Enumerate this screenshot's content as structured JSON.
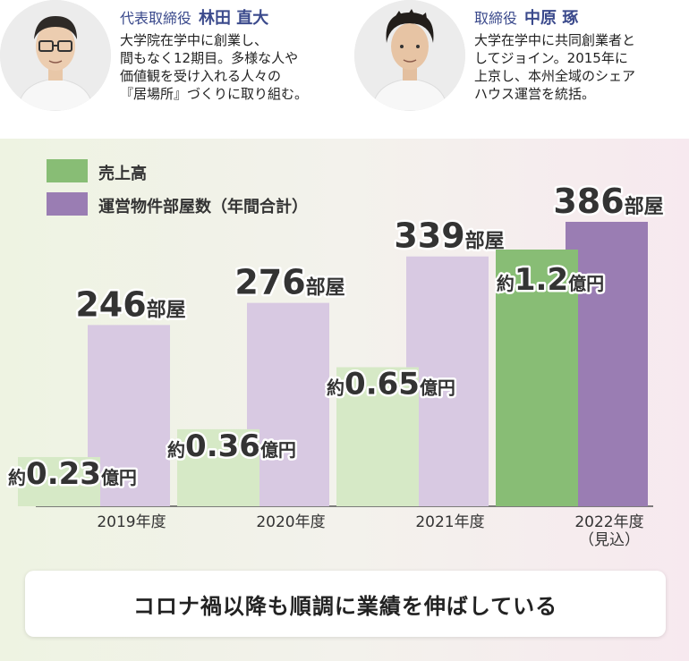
{
  "profiles": [
    {
      "role": "代表取締役",
      "name": "林田 直大",
      "bio": [
        "大学院在学中に創業し、",
        "間もなく12期目。多様な人や",
        "価値観を受け入れる人々の",
        "『居場所』づくりに取り組む。"
      ]
    },
    {
      "role": "取締役",
      "name": "中原 琢",
      "bio": [
        "大学在学中に共同創業者と",
        "してジョイン。2015年に",
        "上京し、本州全域のシェア",
        "ハウス運営を統括。"
      ]
    }
  ],
  "colors": {
    "sales": "#88bd75",
    "rooms": "#d8c9e2",
    "rooms_highlight": "#9a7db3",
    "sales_light": "#d6e9c6",
    "role_text": "#3b4a8c"
  },
  "chart_data": {
    "type": "bar",
    "categories": [
      "2019年度",
      "2020年度",
      "2021年度",
      "2022年度\n（見込）"
    ],
    "series": [
      {
        "name": "売上高",
        "values": [
          0.23,
          0.36,
          0.65,
          1.2
        ],
        "labels": [
          {
            "prefix": "約",
            "number": "0.23",
            "unit": "億円"
          },
          {
            "prefix": "約",
            "number": "0.36",
            "unit": "億円"
          },
          {
            "prefix": "約",
            "number": "0.65",
            "unit": "億円"
          },
          {
            "prefix": "約",
            "number": "1.2",
            "unit": "億円"
          }
        ]
      },
      {
        "name": "運営物件部屋数（年間合計）",
        "values": [
          246,
          276,
          339,
          386
        ],
        "labels": [
          {
            "number": "246",
            "unit": "部屋"
          },
          {
            "number": "276",
            "unit": "部屋"
          },
          {
            "number": "339",
            "unit": "部屋"
          },
          {
            "number": "386",
            "unit": "部屋"
          }
        ]
      }
    ],
    "legend_position": "top-left",
    "grid": false
  },
  "summary": "コロナ禍以降も順調に業績を伸ばしている"
}
